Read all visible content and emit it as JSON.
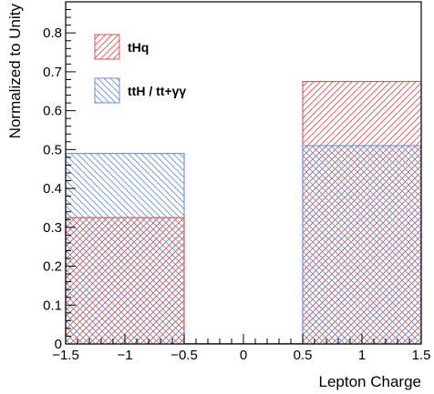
{
  "chart_data": {
    "type": "bar",
    "title": "",
    "xlabel": "Lepton Charge",
    "ylabel": "Normalized to Unity",
    "xlim": [
      -1.5,
      1.5
    ],
    "ylim": [
      0,
      0.88
    ],
    "x_ticks": [
      "−1.5",
      "−1",
      "−0.5",
      "0",
      "0.5",
      "1",
      "1.5"
    ],
    "y_ticks": [
      "0",
      "0.1",
      "0.2",
      "0.3",
      "0.4",
      "0.5",
      "0.6",
      "0.7",
      "0.8"
    ],
    "bins": [
      [
        -1.5,
        -0.5
      ],
      [
        -0.5,
        0.5
      ],
      [
        0.5,
        1.5
      ]
    ],
    "grid": false,
    "legend_position": "top-left",
    "series": [
      {
        "name": "tHq",
        "values": [
          0.325,
          0,
          0.675
        ],
        "color": "#d9534f",
        "hatch": "forward-diagonal"
      },
      {
        "name": "ttH / tt+γγ",
        "values": [
          0.49,
          0,
          0.51
        ],
        "color": "#6a8fd0",
        "hatch": "backward-diagonal"
      }
    ]
  }
}
